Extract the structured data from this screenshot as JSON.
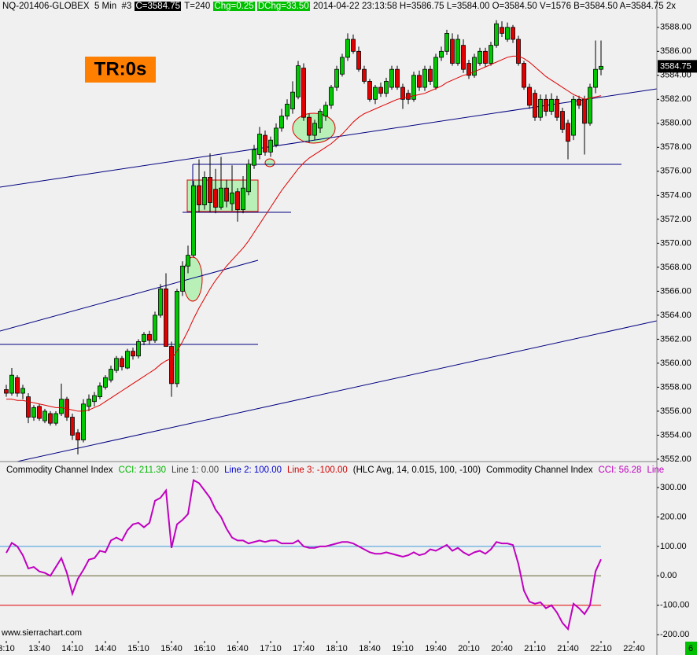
{
  "header": {
    "symbol": "NQ-201406-GLOBEX  5 Min  #3",
    "close": "C=3584.75",
    "trades": "T=240",
    "chg": "Chg=0.25",
    "dchg": "DChg=33.50",
    "info": "2014-04-22 23:13:58 H=3586.75 L=3584.00 O=3584.50 V=1576 B=3584.50 A=3584.75 2x"
  },
  "badge": "TR:0s",
  "watermark": "www.sierrachart.com",
  "corner": "6",
  "chart_data": [
    {
      "type": "candlestick",
      "categories": [
        "3:10",
        null,
        null,
        null,
        null,
        null,
        "13:40",
        null,
        null,
        null,
        null,
        null,
        "14:10",
        null,
        null,
        null,
        null,
        null,
        "14:40",
        null,
        null,
        null,
        null,
        null,
        "15:10",
        null,
        null,
        null,
        null,
        null,
        "15:40",
        null,
        null,
        null,
        null,
        null,
        "16:10",
        null,
        null,
        null,
        null,
        null,
        "16:40",
        null,
        null,
        null,
        null,
        null,
        "17:10",
        null,
        null,
        null,
        null,
        null,
        "17:40",
        null,
        null,
        null,
        null,
        null,
        "18:10",
        null,
        null,
        null,
        null,
        null,
        "18:40",
        null,
        null,
        null,
        null,
        null,
        "19:10",
        null,
        null,
        null,
        null,
        null,
        "19:40",
        null,
        null,
        null,
        null,
        null,
        "20:10",
        null,
        null,
        null,
        null,
        null,
        "20:40",
        null,
        null,
        null,
        null,
        null,
        "21:10",
        null,
        null,
        null,
        null,
        null,
        "21:40",
        null,
        null,
        null,
        null,
        null,
        "22:10",
        null,
        null,
        null,
        null,
        null,
        "22:40"
      ],
      "open": [
        3557.8,
        3557.5,
        3558.8,
        3557.5,
        3557.2,
        3555.5,
        3556.4,
        3555.2,
        3555.8,
        3555.0,
        3555.8,
        3557.0,
        3555.5,
        3554.2,
        3553.6,
        3556.4,
        3556.8,
        3557.2,
        3558.0,
        3558.6,
        3559.4,
        3560.4,
        3559.6,
        3561.0,
        3560.6,
        3561.8,
        3562.4,
        3561.9,
        3564.0,
        3566.2,
        3561.4,
        3558.3,
        3566.0,
        3568.1,
        3569.0,
        3574.8,
        3573.2,
        3575.5,
        3574.5,
        3573.0,
        3574.6,
        3573.3,
        3574.3,
        3572.8,
        3574.3,
        3576.5,
        3577.4,
        3579.0,
        3577.6,
        3578.2,
        3579.6,
        3580.6,
        3581.2,
        3582.2,
        3584.6,
        3580.5,
        3579.0,
        3579.6,
        3580.6,
        3581.5,
        3583.0,
        3584.1,
        3585.5,
        3587.0,
        3586.0,
        3584.5,
        3583.5,
        3582.0,
        3583.0,
        3582.5,
        3583.0,
        3584.5,
        3583.0,
        3582.5,
        3582.0,
        3584.0,
        3583.0,
        3584.5,
        3583.0,
        3585.5,
        3586.0,
        3587.0,
        3585.0,
        3586.5,
        3585.0,
        3584.0,
        3585.0,
        3586.0,
        3585.0,
        3586.5,
        3588.0,
        3587.0,
        3588.0,
        3587.0,
        3585.0,
        3583.0,
        3582.5,
        3580.5,
        3582.0,
        3581.0,
        3582.0,
        3581.0,
        3580.0,
        3579.0,
        3582.0,
        3582.0,
        3580.0,
        3583.0,
        3584.5,
        null,
        null,
        null,
        null,
        null,
        null
      ],
      "high": [
        3558.2,
        3559.6,
        3559.0,
        3558.2,
        3557.5,
        3556.5,
        3556.6,
        3556.2,
        3556.0,
        3556.0,
        3558.3,
        3557.2,
        3555.8,
        3554.5,
        3557.0,
        3557.4,
        3557.6,
        3558.4,
        3559.0,
        3559.8,
        3560.6,
        3560.6,
        3561.2,
        3561.3,
        3562.0,
        3562.6,
        3562.7,
        3564.3,
        3566.6,
        3567.5,
        3561.8,
        3566.2,
        3568.5,
        3569.8,
        3575.2,
        3577.0,
        3576.0,
        3577.5,
        3576.2,
        3577.2,
        3575.3,
        3576.5,
        3574.6,
        3575.6,
        3577.0,
        3578.2,
        3579.7,
        3579.4,
        3578.9,
        3580.0,
        3581.2,
        3582.0,
        3583.5,
        3585.2,
        3585.0,
        3580.8,
        3580.3,
        3581.2,
        3581.8,
        3583.2,
        3584.8,
        3585.8,
        3587.5,
        3587.4,
        3586.4,
        3584.8,
        3583.7,
        3583.2,
        3583.4,
        3583.8,
        3584.8,
        3584.8,
        3583.3,
        3582.8,
        3584.3,
        3584.4,
        3584.8,
        3584.8,
        3585.8,
        3586.4,
        3587.8,
        3587.5,
        3587.4,
        3587.0,
        3585.3,
        3585.8,
        3586.3,
        3586.3,
        3586.8,
        3588.6,
        3588.5,
        3588.4,
        3588.2,
        3587.3,
        3585.2,
        3583.3,
        3582.8,
        3582.4,
        3582.4,
        3582.5,
        3582.3,
        3581.3,
        3580.3,
        3582.3,
        3582.3,
        3582.3,
        3583.3,
        3586.9,
        3586.9,
        null,
        null,
        null,
        null,
        null,
        null
      ],
      "low": [
        3557.2,
        3557.3,
        3557.2,
        3557.0,
        3555.0,
        3555.2,
        3555.2,
        3555.0,
        3554.8,
        3554.8,
        3555.6,
        3555.2,
        3553.6,
        3552.4,
        3553.4,
        3556.0,
        3556.4,
        3557.0,
        3557.8,
        3558.4,
        3559.2,
        3559.4,
        3559.5,
        3560.3,
        3560.4,
        3561.5,
        3561.6,
        3561.7,
        3563.8,
        3561.4,
        3557.2,
        3558.0,
        3565.6,
        3567.5,
        3568.8,
        3572.6,
        3572.8,
        3572.6,
        3572.5,
        3572.8,
        3573.0,
        3572.7,
        3571.8,
        3572.5,
        3574.0,
        3576.2,
        3577.0,
        3577.3,
        3577.2,
        3578.0,
        3579.3,
        3580.3,
        3580.8,
        3582.0,
        3580.2,
        3578.4,
        3578.6,
        3579.2,
        3580.2,
        3581.2,
        3582.7,
        3583.9,
        3585.2,
        3585.8,
        3584.3,
        3583.3,
        3581.8,
        3581.6,
        3582.2,
        3582.2,
        3582.8,
        3582.8,
        3581.2,
        3581.6,
        3581.8,
        3582.7,
        3582.7,
        3583.2,
        3582.8,
        3585.2,
        3585.7,
        3584.8,
        3584.8,
        3584.2,
        3583.7,
        3583.8,
        3584.8,
        3584.7,
        3584.8,
        3586.3,
        3587.2,
        3586.8,
        3586.7,
        3584.8,
        3582.8,
        3581.2,
        3580.2,
        3580.2,
        3580.6,
        3580.7,
        3580.2,
        3579.2,
        3577.0,
        3578.6,
        3581.2,
        3577.4,
        3579.8,
        3582.5,
        3584.0,
        null,
        null,
        null,
        null,
        null,
        null
      ],
      "close": [
        3557.5,
        3559.0,
        3557.5,
        3557.9,
        3555.5,
        3556.3,
        3555.4,
        3556.0,
        3555.0,
        3555.8,
        3557.0,
        3555.5,
        3554.0,
        3553.6,
        3556.6,
        3557.0,
        3557.3,
        3558.1,
        3558.8,
        3559.5,
        3560.4,
        3559.7,
        3561.0,
        3560.6,
        3561.8,
        3562.4,
        3561.9,
        3564.0,
        3566.2,
        3561.4,
        3558.3,
        3566.0,
        3568.1,
        3569.0,
        3574.8,
        3573.2,
        3575.5,
        3573.4,
        3573.0,
        3574.6,
        3573.5,
        3574.2,
        3572.8,
        3574.6,
        3576.6,
        3577.8,
        3579.1,
        3577.6,
        3578.6,
        3579.6,
        3580.6,
        3581.6,
        3582.6,
        3584.8,
        3580.5,
        3579.0,
        3580.0,
        3581.0,
        3581.5,
        3583.0,
        3584.5,
        3585.5,
        3587.0,
        3586.0,
        3584.5,
        3583.5,
        3582.0,
        3583.0,
        3582.5,
        3583.5,
        3584.5,
        3583.0,
        3582.0,
        3582.0,
        3584.0,
        3583.0,
        3584.5,
        3583.5,
        3585.5,
        3586.0,
        3587.5,
        3585.0,
        3587.0,
        3584.5,
        3584.0,
        3585.5,
        3586.0,
        3585.0,
        3586.5,
        3588.3,
        3587.5,
        3588.0,
        3587.0,
        3585.0,
        3583.0,
        3581.5,
        3580.5,
        3582.0,
        3581.0,
        3582.0,
        3580.5,
        3579.5,
        3578.5,
        3582.0,
        3581.5,
        3580.0,
        3583.0,
        3584.5,
        3584.75,
        null,
        null,
        null,
        null,
        null,
        null
      ],
      "up_color": "#00c800",
      "down_color": "#e00000",
      "overlay": {
        "color": "#e00000",
        "values": [
          3557.0,
          3557.0,
          3556.9,
          3556.9,
          3556.8,
          3556.7,
          3556.6,
          3556.5,
          3556.4,
          3556.3,
          3556.3,
          3556.2,
          3556.1,
          3556.0,
          3556.0,
          3556.1,
          3556.3,
          3556.5,
          3556.8,
          3557.1,
          3557.4,
          3557.7,
          3558.0,
          3558.3,
          3558.6,
          3558.9,
          3559.2,
          3559.5,
          3559.9,
          3560.2,
          3560.4,
          3561.0,
          3561.8,
          3562.7,
          3563.7,
          3564.6,
          3565.4,
          3566.2,
          3566.9,
          3567.5,
          3568.1,
          3568.6,
          3569.1,
          3569.6,
          3570.2,
          3570.9,
          3571.6,
          3572.3,
          3573.0,
          3573.7,
          3574.4,
          3575.0,
          3575.6,
          3576.2,
          3576.7,
          3577.1,
          3577.4,
          3577.7,
          3578.0,
          3578.3,
          3578.7,
          3579.1,
          3579.6,
          3580.1,
          3580.5,
          3580.8,
          3581.0,
          3581.2,
          3581.4,
          3581.6,
          3581.8,
          3582.0,
          3582.1,
          3582.2,
          3582.3,
          3582.4,
          3582.5,
          3582.7,
          3582.9,
          3583.1,
          3583.4,
          3583.6,
          3583.8,
          3584.0,
          3584.1,
          3584.3,
          3584.5,
          3584.7,
          3584.9,
          3585.1,
          3585.3,
          3585.5,
          3585.6,
          3585.6,
          3585.4,
          3585.1,
          3584.7,
          3584.3,
          3583.9,
          3583.6,
          3583.3,
          3583.0,
          3582.7,
          3582.4,
          3582.2,
          3582.0,
          3582.1,
          3582.2,
          3582.3,
          null,
          null,
          null,
          null,
          null,
          null
        ]
      },
      "ylim": [
        3551.8,
        3589.1
      ],
      "yticks": [
        {
          "value": 3552,
          "label": "3552.00"
        },
        {
          "value": 3554,
          "label": "3554.00"
        },
        {
          "value": 3556,
          "label": "3556.00"
        },
        {
          "value": 3558,
          "label": "3558.00"
        },
        {
          "value": 3560,
          "label": "3560.00"
        },
        {
          "value": 3562,
          "label": "3562.00"
        },
        {
          "value": 3564,
          "label": "3564.00"
        },
        {
          "value": 3566,
          "label": "3566.00"
        },
        {
          "value": 3568,
          "label": "3568.00"
        },
        {
          "value": 3570,
          "label": "3570.00"
        },
        {
          "value": 3572,
          "label": "3572.00"
        },
        {
          "value": 3574,
          "label": "3574.00"
        },
        {
          "value": 3576,
          "label": "3576.00"
        },
        {
          "value": 3578,
          "label": "3578.00"
        },
        {
          "value": 3580,
          "label": "3580.00"
        },
        {
          "value": 3582,
          "label": "3582.00"
        },
        {
          "value": 3584,
          "label": "3584.00"
        },
        {
          "value": 3586,
          "label": "3586.00"
        },
        {
          "value": 3588,
          "label": "3588.00"
        }
      ]
    },
    {
      "type": "line",
      "legend": [
        {
          "text": "Commodity Channel Index",
          "color": "#000000"
        },
        {
          "text": "CCI: 211.30",
          "color": "#00b400"
        },
        {
          "text": "Line 1: 0.00",
          "color": "#404040",
          "level": 0,
          "line_color": "#606030"
        },
        {
          "text": "Line 2: 100.00",
          "color": "#0000d0",
          "level": 100,
          "line_color": "#3a9ad9"
        },
        {
          "text": "Line 3: -100.00",
          "color": "#d00000",
          "level": -100,
          "line_color": "#e00000"
        },
        {
          "text": "(HLC Avg, 14, 0.015, 100, -100)",
          "color": "#000000"
        },
        {
          "text": "Commodity Channel Index",
          "color": "#000000"
        },
        {
          "text": "CCI: 56.28",
          "color": "#c000c0"
        },
        {
          "text": "Line",
          "color": "#c000c0"
        }
      ],
      "series": [
        {
          "color": "#c000c0",
          "values": [
            78,
            112,
            100,
            70,
            25,
            30,
            15,
            10,
            0,
            30,
            60,
            10,
            -61,
            -10,
            20,
            55,
            60,
            85,
            80,
            120,
            130,
            120,
            155,
            175,
            180,
            165,
            180,
            255,
            265,
            290,
            95,
            175,
            190,
            210,
            325,
            315,
            290,
            265,
            225,
            200,
            160,
            130,
            120,
            120,
            110,
            115,
            120,
            115,
            120,
            120,
            110,
            110,
            110,
            120,
            100,
            95,
            95,
            100,
            100,
            105,
            110,
            115,
            115,
            110,
            100,
            90,
            80,
            75,
            75,
            80,
            75,
            70,
            65,
            70,
            80,
            70,
            75,
            90,
            85,
            95,
            105,
            85,
            95,
            80,
            70,
            80,
            85,
            75,
            90,
            115,
            110,
            110,
            105,
            40,
            -50,
            -88,
            -95,
            -90,
            -110,
            -100,
            -125,
            -160,
            -181,
            -95,
            -110,
            -130,
            -100,
            15,
            56.28,
            null,
            null,
            null,
            null,
            null,
            null
          ]
        }
      ],
      "ylim": [
        -221,
        385.6
      ],
      "yticks": [
        {
          "value": 300,
          "label": "300.00"
        },
        {
          "value": 200,
          "label": "200.00"
        },
        {
          "value": 100,
          "label": "100.00"
        },
        {
          "value": 0,
          "label": "0.00"
        },
        {
          "value": -100,
          "label": "-100.00"
        },
        {
          "value": -200,
          "label": "-200.00"
        }
      ]
    }
  ]
}
